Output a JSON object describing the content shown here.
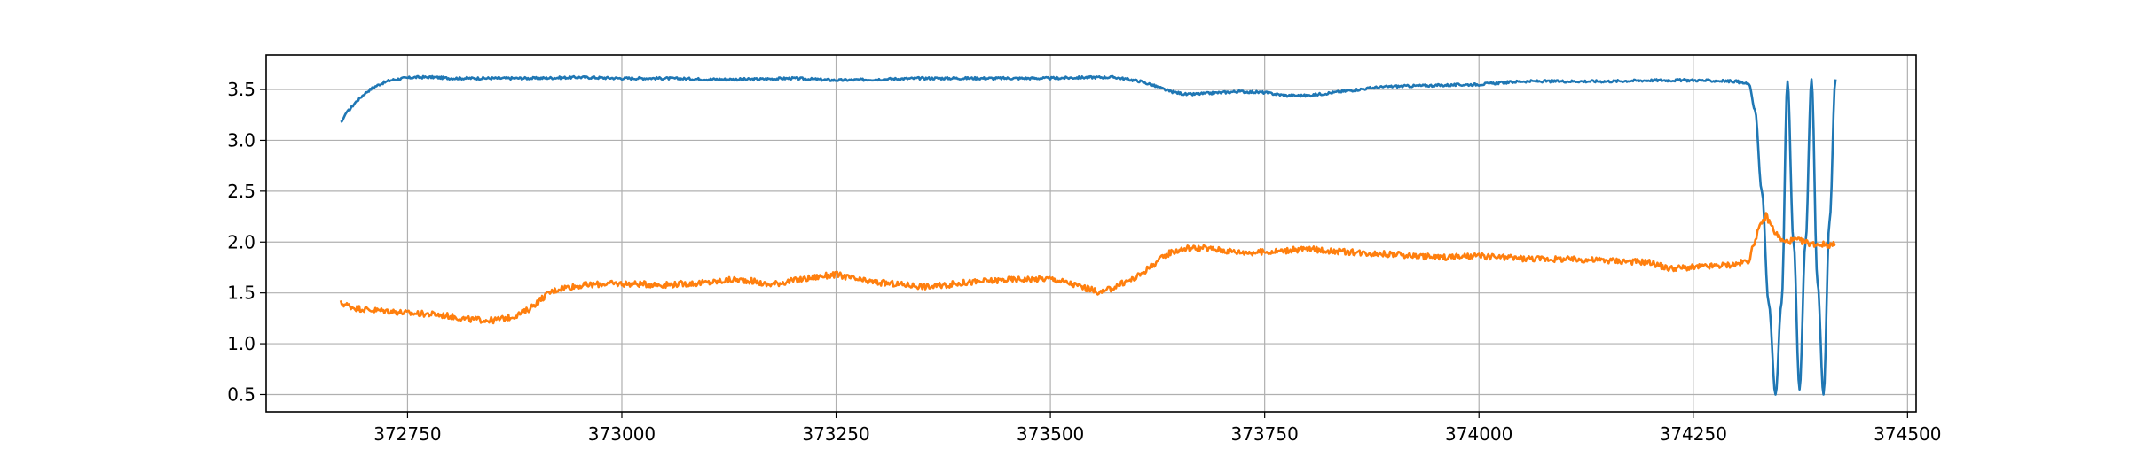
{
  "chart_data": {
    "type": "line",
    "title": "",
    "xlabel": "",
    "ylabel": "",
    "xlim": [
      372585,
      374510
    ],
    "ylim": [
      0.33,
      3.84
    ],
    "grid": true,
    "x_ticks": [
      372750,
      373000,
      373250,
      373500,
      373750,
      374000,
      374250,
      374500
    ],
    "x_tick_labels": [
      "372750",
      "373000",
      "373250",
      "373500",
      "373750",
      "374000",
      "374250",
      "374500"
    ],
    "y_ticks": [
      0.5,
      1.0,
      1.5,
      2.0,
      2.5,
      3.0,
      3.5
    ],
    "y_tick_labels": [
      "0.5",
      "1.0",
      "1.5",
      "2.0",
      "2.5",
      "3.0",
      "3.5"
    ],
    "series": [
      {
        "color": "#1f77b4",
        "x": [
          372672,
          372680,
          372690,
          372700,
          372710,
          372720,
          372730,
          372745,
          372760,
          372780,
          372800,
          372850,
          372900,
          372950,
          373000,
          373050,
          373100,
          373150,
          373200,
          373250,
          373300,
          373350,
          373400,
          373450,
          373500,
          373550,
          373575,
          373590,
          373605,
          373620,
          373640,
          373660,
          373680,
          373700,
          373720,
          373750,
          373775,
          373800,
          373820,
          373850,
          373880,
          373900,
          373950,
          374000,
          374050,
          374100,
          374150,
          374200,
          374250,
          374300,
          374315,
          374322,
          374330,
          374338,
          374346,
          374353,
          374360,
          374367,
          374374,
          374381,
          374388,
          374395,
          374402,
          374409,
          374416
        ],
        "y": [
          3.18,
          3.28,
          3.38,
          3.46,
          3.52,
          3.56,
          3.59,
          3.61,
          3.62,
          3.62,
          3.61,
          3.61,
          3.61,
          3.62,
          3.61,
          3.61,
          3.6,
          3.6,
          3.61,
          3.59,
          3.6,
          3.61,
          3.61,
          3.61,
          3.61,
          3.62,
          3.62,
          3.6,
          3.58,
          3.54,
          3.48,
          3.45,
          3.46,
          3.47,
          3.48,
          3.47,
          3.44,
          3.44,
          3.46,
          3.49,
          3.52,
          3.53,
          3.54,
          3.55,
          3.58,
          3.58,
          3.58,
          3.59,
          3.59,
          3.58,
          3.55,
          3.3,
          2.5,
          1.4,
          0.5,
          1.4,
          3.58,
          2.0,
          0.55,
          2.0,
          3.6,
          1.6,
          0.5,
          2.2,
          3.6
        ]
      },
      {
        "color": "#ff7f0e",
        "x": [
          372672,
          372690,
          372710,
          372730,
          372750,
          372780,
          372800,
          372820,
          372850,
          372870,
          372880,
          372890,
          372900,
          372915,
          372930,
          372950,
          372980,
          373000,
          373050,
          373100,
          373130,
          373150,
          373170,
          373200,
          373230,
          373250,
          373280,
          373300,
          373330,
          373360,
          373380,
          373400,
          373450,
          373500,
          373520,
          373540,
          373560,
          373580,
          373600,
          373620,
          373640,
          373660,
          373680,
          373700,
          373720,
          373750,
          373780,
          373800,
          373850,
          373900,
          373950,
          374000,
          374050,
          374100,
          374150,
          374200,
          374220,
          374250,
          374270,
          374300,
          374315,
          374325,
          374335,
          374345,
          374355,
          374370,
          374390,
          374416
        ],
        "y": [
          1.4,
          1.35,
          1.33,
          1.32,
          1.3,
          1.29,
          1.27,
          1.24,
          1.23,
          1.26,
          1.29,
          1.33,
          1.4,
          1.5,
          1.55,
          1.57,
          1.59,
          1.59,
          1.58,
          1.6,
          1.63,
          1.62,
          1.58,
          1.62,
          1.66,
          1.68,
          1.62,
          1.6,
          1.58,
          1.56,
          1.58,
          1.6,
          1.63,
          1.64,
          1.6,
          1.55,
          1.5,
          1.58,
          1.65,
          1.78,
          1.9,
          1.94,
          1.94,
          1.92,
          1.9,
          1.9,
          1.92,
          1.93,
          1.9,
          1.88,
          1.85,
          1.86,
          1.84,
          1.83,
          1.82,
          1.8,
          1.74,
          1.75,
          1.76,
          1.78,
          1.82,
          2.1,
          2.26,
          2.1,
          2.0,
          2.02,
          1.98,
          1.97
        ]
      }
    ]
  }
}
